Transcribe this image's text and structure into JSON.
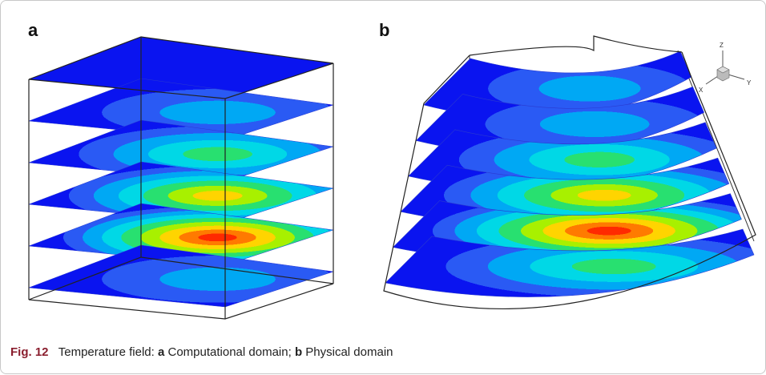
{
  "panels": [
    {
      "label": "a"
    },
    {
      "label": "b"
    }
  ],
  "axis_triad": {
    "z": "Z",
    "x": "X",
    "y": "Y"
  },
  "caption": {
    "figure": "Fig. 12",
    "text": "Temperature field:",
    "part_a_label": "a",
    "part_a": "Computational domain;",
    "part_b_label": "b",
    "part_b": "Physical domain"
  }
}
